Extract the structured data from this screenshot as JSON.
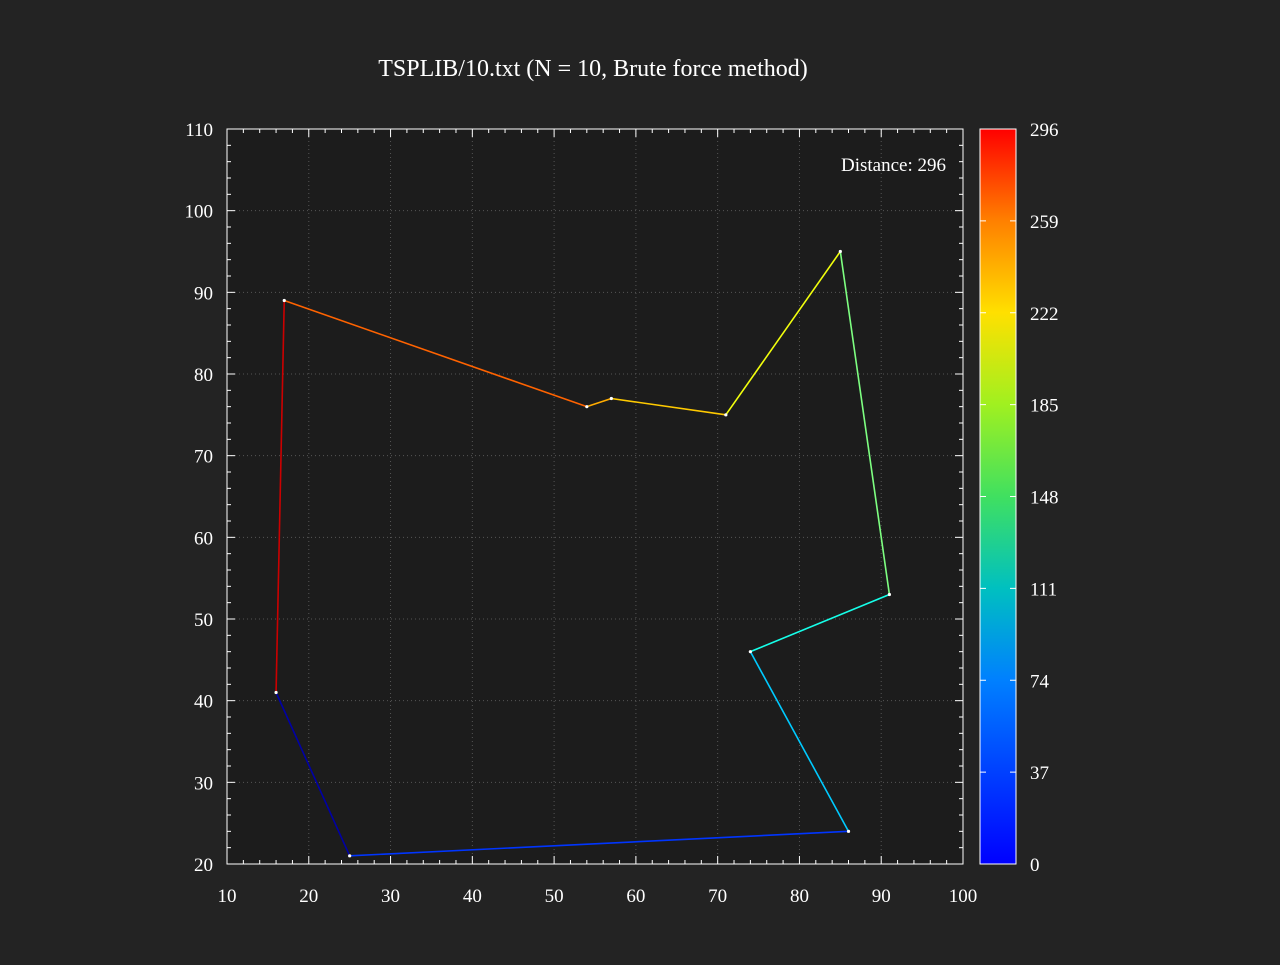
{
  "chart_data": {
    "type": "line",
    "title": "TSPLIB/10.txt (N = 10, Brute force method)",
    "xlabel": "",
    "ylabel": "",
    "xlim": [
      10,
      100
    ],
    "ylim": [
      20,
      110
    ],
    "xticks": [
      10,
      20,
      30,
      40,
      50,
      60,
      70,
      80,
      90,
      100
    ],
    "yticks": [
      20,
      30,
      40,
      50,
      60,
      70,
      80,
      90,
      100,
      110
    ],
    "grid": true,
    "annotation": "Distance: 296",
    "route": {
      "x": [
        16,
        25,
        86,
        74,
        91,
        85,
        71,
        57,
        54,
        17,
        16
      ],
      "y": [
        41,
        21,
        24,
        46,
        53,
        95,
        75,
        77,
        76,
        89,
        41
      ]
    },
    "colorbar": {
      "range": [
        0,
        296
      ],
      "ticks": [
        0,
        37,
        74,
        111,
        148,
        185,
        222,
        259,
        296
      ],
      "colormap": "jet"
    }
  },
  "colors": {
    "background": "#232323",
    "plot_background": "#1c1c1c",
    "axis": "#ffffff",
    "grid": "#555555"
  }
}
